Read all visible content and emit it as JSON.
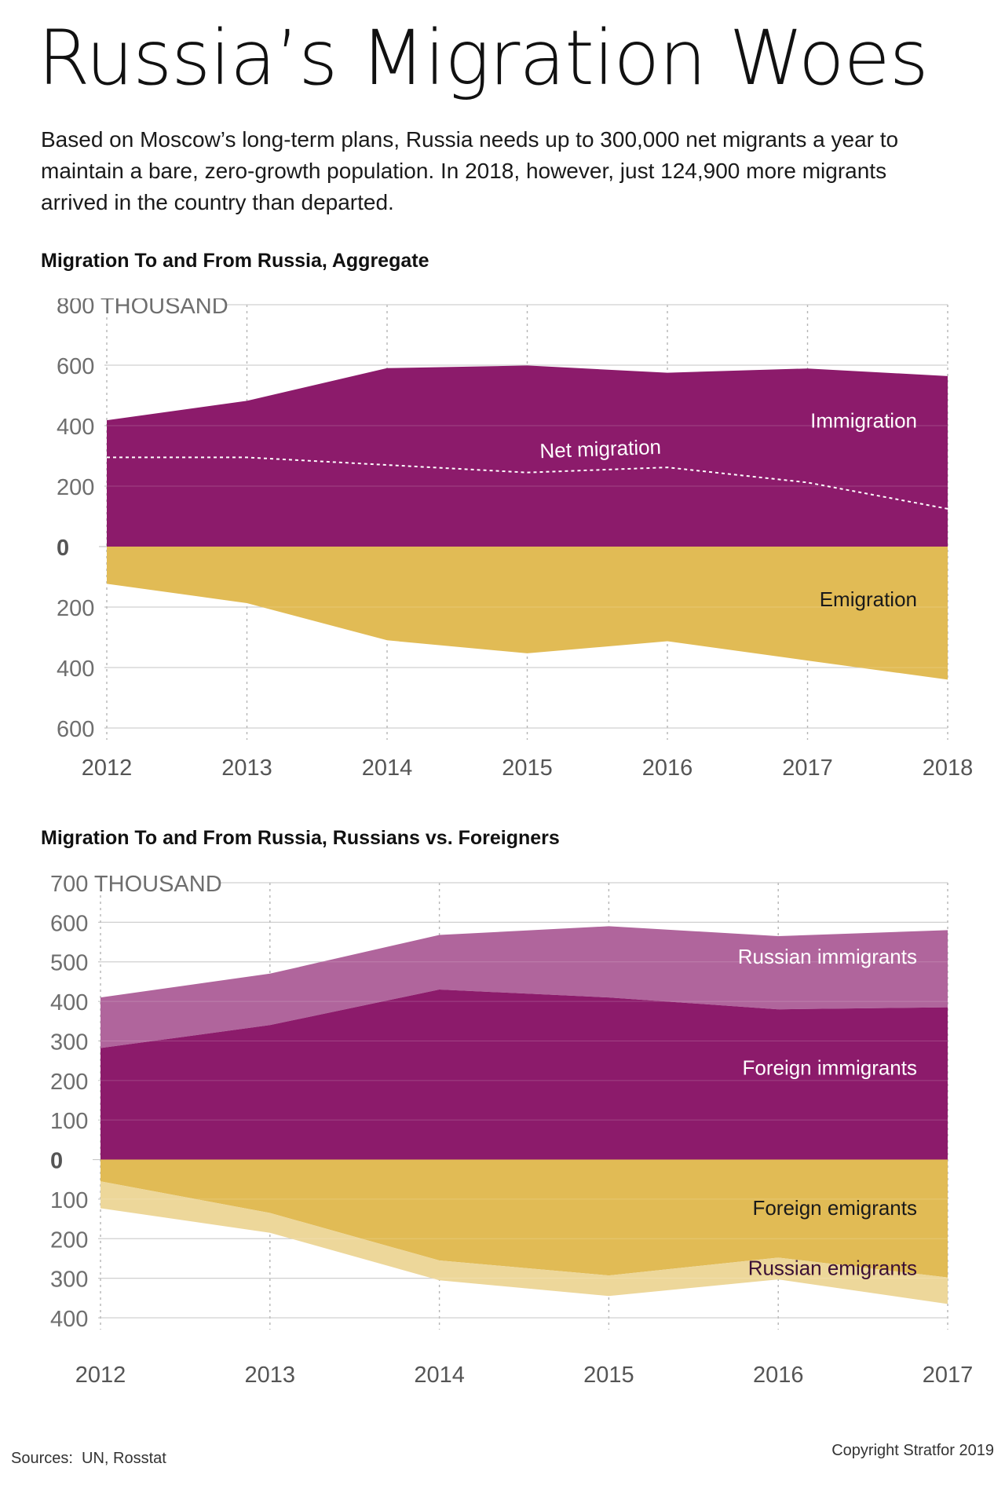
{
  "header": {
    "title": "Russia’s Migration Woes",
    "subtitle": "Based on Moscow’s long-term plans, Russia needs up to 300,000 net migrants a year to maintain a bare, zero-growth population. In 2018, however, just 124,900 more migrants arrived in the country than departed."
  },
  "footer": {
    "sources": "Sources:  UN, Rosstat",
    "copyright": "Copyright Stratfor 2019"
  },
  "colors": {
    "immigration": "#8c1b6b",
    "russian_immigrants": "#b0659c",
    "emigration": "#e1bb55",
    "russian_emigrants": "#edd79a",
    "grid": "#c8c8c8"
  },
  "chart_data": [
    {
      "type": "area",
      "title": "Migration To and From Russia, Aggregate",
      "ylabel": "",
      "y_unit_label": "800 THOUSAND",
      "ylim": [
        -600,
        800
      ],
      "yticks": [
        -600,
        -400,
        -200,
        0,
        200,
        400,
        600,
        800
      ],
      "ytick_labels": [
        "600",
        "400",
        "200",
        "0",
        "200",
        "400",
        "600",
        "800 THOUSAND"
      ],
      "x": [
        "2012",
        "2013",
        "2014",
        "2015",
        "2016",
        "2017",
        "2018"
      ],
      "grid": true,
      "legend": "inline labels",
      "series": [
        {
          "name": "Immigration",
          "values": [
            418,
            482,
            590,
            599,
            575,
            589,
            564
          ]
        },
        {
          "name": "Emigration",
          "values": [
            -123,
            -187,
            -310,
            -353,
            -313,
            -377,
            -440
          ]
        },
        {
          "name": "Net migration",
          "values": [
            295,
            295,
            270,
            245,
            262,
            212,
            125
          ]
        }
      ]
    },
    {
      "type": "area",
      "title": "Migration To and From Russia, Russians vs. Foreigners",
      "ylabel": "",
      "y_unit_label": "700 THOUSAND",
      "ylim": [
        -400,
        700
      ],
      "yticks": [
        -400,
        -300,
        -200,
        -100,
        0,
        100,
        200,
        300,
        400,
        500,
        600,
        700
      ],
      "ytick_labels": [
        "400",
        "300",
        "200",
        "100",
        "0",
        "100",
        "200",
        "300",
        "400",
        "500",
        "600",
        "700 THOUSAND"
      ],
      "x": [
        "2012",
        "2013",
        "2014",
        "2015",
        "2016",
        "2017"
      ],
      "grid": true,
      "legend": "inline labels",
      "series": [
        {
          "name": "Foreign immigrants",
          "values": [
            282,
            340,
            430,
            410,
            380,
            385
          ]
        },
        {
          "name": "Russian immigrants",
          "values": [
            128,
            130,
            138,
            180,
            185,
            195
          ]
        },
        {
          "name": "Foreign emigrants",
          "values": [
            -55,
            -135,
            -255,
            -293,
            -248,
            -298
          ]
        },
        {
          "name": "Russian emigrants",
          "values": [
            -68,
            -50,
            -50,
            -52,
            -55,
            -67
          ]
        }
      ]
    }
  ]
}
